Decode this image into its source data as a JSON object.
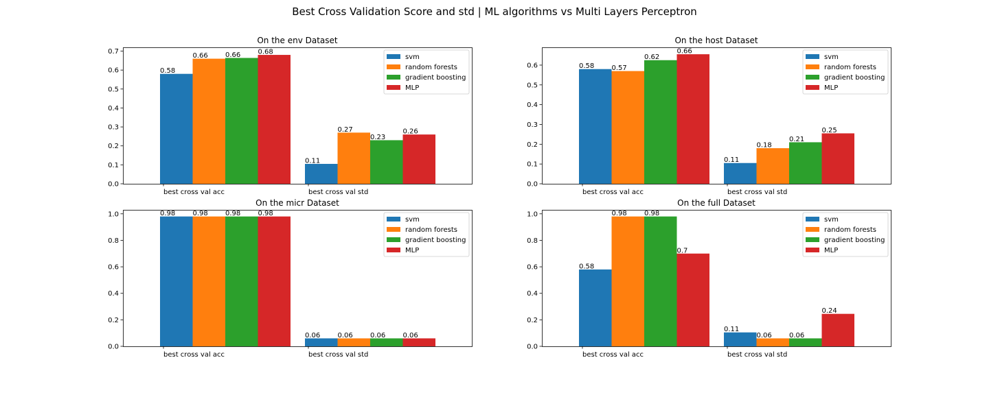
{
  "figure": {
    "title": "Best Cross Validation Score and std | ML algorithms vs Multi Layers Perceptron"
  },
  "legend": {
    "placement": "upper right",
    "entries": [
      "svm",
      "random forests",
      "gradient boosting",
      "MLP"
    ]
  },
  "colors": {
    "svm": "#1f77b4",
    "random forests": "#ff7f0e",
    "gradient boosting": "#2ca02c",
    "MLP": "#d62728"
  },
  "chart_data": [
    {
      "type": "bar",
      "title": "On the env Dataset",
      "categories": [
        "best cross val acc",
        "best cross val std"
      ],
      "ylim": [
        0,
        0.72
      ],
      "yticks": [
        "0.0",
        "0.1",
        "0.2",
        "0.3",
        "0.4",
        "0.5",
        "0.6",
        "0.7"
      ],
      "series": [
        {
          "name": "svm",
          "values": [
            0.58,
            0.105
          ],
          "labels": [
            "0.58",
            "0.11"
          ]
        },
        {
          "name": "random forests",
          "values": [
            0.66,
            0.27
          ],
          "labels": [
            "0.66",
            "0.27"
          ]
        },
        {
          "name": "gradient boosting",
          "values": [
            0.664,
            0.23
          ],
          "labels": [
            "0.66",
            "0.23"
          ]
        },
        {
          "name": "MLP",
          "values": [
            0.68,
            0.26
          ],
          "labels": [
            "0.68",
            "0.26"
          ]
        }
      ]
    },
    {
      "type": "bar",
      "title": "On the host Dataset",
      "categories": [
        "best cross val acc",
        "best cross val std"
      ],
      "ylim": [
        0,
        0.69
      ],
      "yticks": [
        "0.0",
        "0.1",
        "0.2",
        "0.3",
        "0.4",
        "0.5",
        "0.6"
      ],
      "series": [
        {
          "name": "svm",
          "values": [
            0.58,
            0.105
          ],
          "labels": [
            "0.58",
            "0.11"
          ]
        },
        {
          "name": "random forests",
          "values": [
            0.57,
            0.18
          ],
          "labels": [
            "0.57",
            "0.18"
          ]
        },
        {
          "name": "gradient boosting",
          "values": [
            0.625,
            0.21
          ],
          "labels": [
            "0.62",
            "0.21"
          ]
        },
        {
          "name": "MLP",
          "values": [
            0.655,
            0.255
          ],
          "labels": [
            "0.66",
            "0.25"
          ]
        }
      ]
    },
    {
      "type": "bar",
      "title": "On the micr Dataset",
      "categories": [
        "best cross val acc",
        "best cross val std"
      ],
      "ylim": [
        0,
        1.03
      ],
      "yticks": [
        "0.0",
        "0.2",
        "0.4",
        "0.6",
        "0.8",
        "1.0"
      ],
      "series": [
        {
          "name": "svm",
          "values": [
            0.98,
            0.06
          ],
          "labels": [
            "0.98",
            "0.06"
          ]
        },
        {
          "name": "random forests",
          "values": [
            0.98,
            0.06
          ],
          "labels": [
            "0.98",
            "0.06"
          ]
        },
        {
          "name": "gradient boosting",
          "values": [
            0.98,
            0.06
          ],
          "labels": [
            "0.98",
            "0.06"
          ]
        },
        {
          "name": "MLP",
          "values": [
            0.98,
            0.06
          ],
          "labels": [
            "0.98",
            "0.06"
          ]
        }
      ]
    },
    {
      "type": "bar",
      "title": "On the full Dataset",
      "categories": [
        "best cross val acc",
        "best cross val std"
      ],
      "ylim": [
        0,
        1.03
      ],
      "yticks": [
        "0.0",
        "0.2",
        "0.4",
        "0.6",
        "0.8",
        "1.0"
      ],
      "series": [
        {
          "name": "svm",
          "values": [
            0.58,
            0.105
          ],
          "labels": [
            "0.58",
            "0.11"
          ]
        },
        {
          "name": "random forests",
          "values": [
            0.98,
            0.06
          ],
          "labels": [
            "0.98",
            "0.06"
          ]
        },
        {
          "name": "gradient boosting",
          "values": [
            0.98,
            0.06
          ],
          "labels": [
            "0.98",
            "0.06"
          ]
        },
        {
          "name": "MLP",
          "values": [
            0.7,
            0.245
          ],
          "labels": [
            "0.7",
            "0.24"
          ]
        }
      ]
    }
  ]
}
